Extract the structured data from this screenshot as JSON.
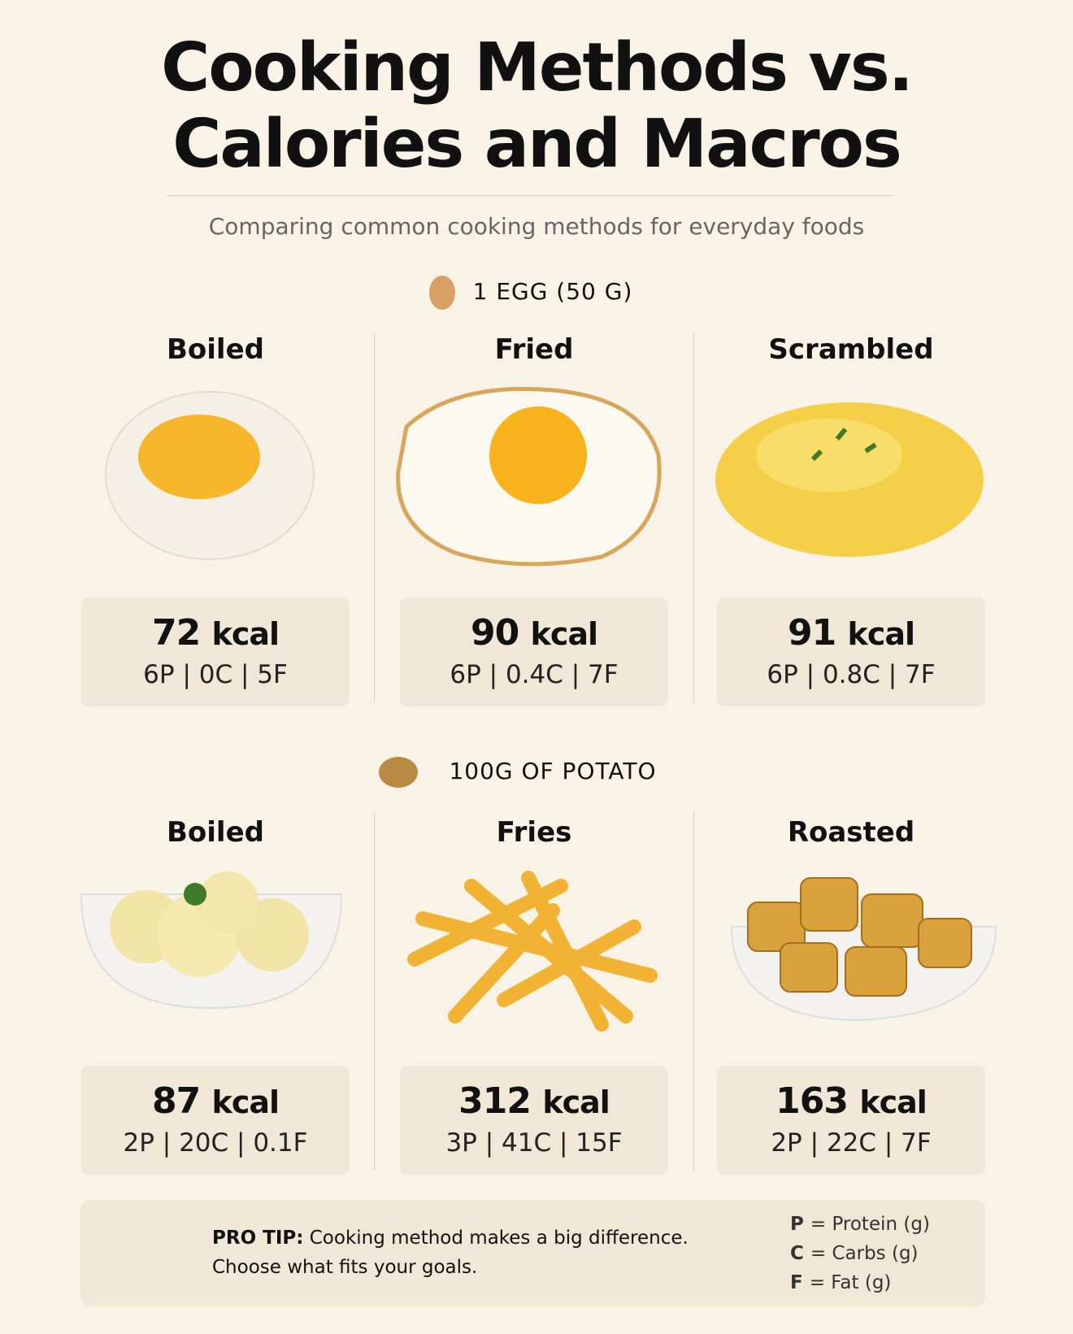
{
  "header": {
    "title_lines": [
      "Cooking Methods vs.",
      "Calories and Macros"
    ],
    "subtitle": "Comparing common cooking methods for everyday foods"
  },
  "sections": [
    {
      "label": "1 EGG (50 G)",
      "items": [
        {
          "name": "Boiled",
          "kcal": "72",
          "unit": "kcal",
          "macros": "6P | 0C | 5F"
        },
        {
          "name": "Fried",
          "kcal": "90",
          "unit": "kcal",
          "macros": "6P | 0.4C | 7F"
        },
        {
          "name": "Scrambled",
          "kcal": "91",
          "unit": "kcal",
          "macros": "6P | 0.8C | 7F"
        }
      ]
    },
    {
      "label": "100G OF POTATO",
      "items": [
        {
          "name": "Boiled",
          "kcal": "87",
          "unit": "kcal",
          "macros": "2P | 20C | 0.1F"
        },
        {
          "name": "Fries",
          "kcal": "312",
          "unit": "kcal",
          "macros": "3P | 41C | 15F"
        },
        {
          "name": "Roasted",
          "kcal": "163",
          "unit": "kcal",
          "macros": "2P | 22C | 7F"
        }
      ]
    }
  ],
  "tip": {
    "label": "PRO TIP:",
    "line1": "Cooking method makes a big difference.",
    "line2": "Choose what fits your goals."
  },
  "legend": [
    {
      "key": "P",
      "text": "= Protein (g)"
    },
    {
      "key": "C",
      "text": "= Carbs (g)"
    },
    {
      "key": "F",
      "text": "= Fat (g)"
    }
  ]
}
